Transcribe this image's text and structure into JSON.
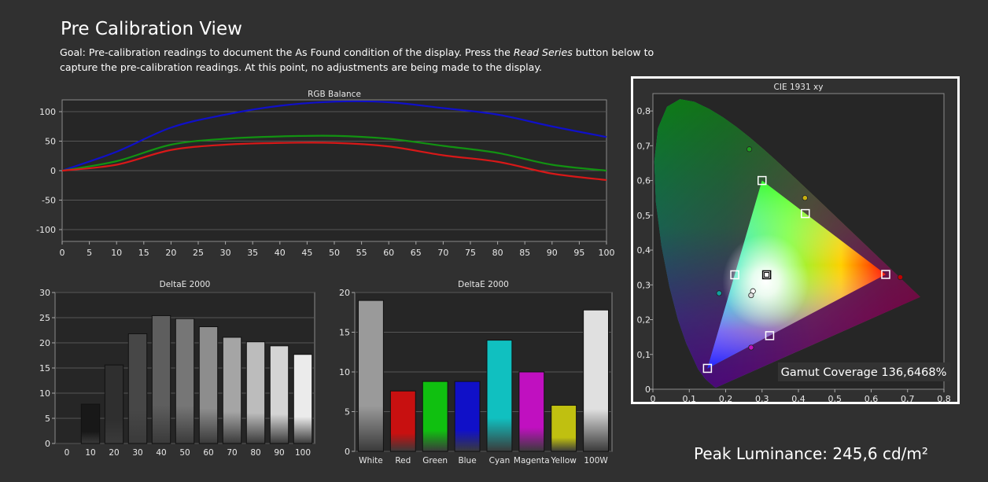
{
  "page": {
    "title": "Pre Calibration View",
    "goal_prefix": "Goal: Pre-calibration readings to document the As Found condition of the display. Press the ",
    "goal_button": "Read Series",
    "goal_suffix": " button below to capture the pre-calibration readings. At this point, no adjustments are being made to the display.",
    "peak_luminance": "Peak Luminance: 245,6 cd/m²"
  },
  "chart_data": [
    {
      "id": "rgb-balance",
      "type": "line",
      "title": "RGB Balance",
      "xlim": [
        0,
        100
      ],
      "ylim": [
        -120,
        120
      ],
      "xticks": [
        "0",
        "5",
        "10",
        "15",
        "20",
        "25",
        "30",
        "35",
        "40",
        "45",
        "50",
        "55",
        "60",
        "65",
        "70",
        "75",
        "80",
        "85",
        "90",
        "95",
        "100"
      ],
      "yticks": [
        "100",
        "50",
        "0",
        "-50",
        "-100"
      ],
      "x": [
        0,
        10,
        20,
        30,
        40,
        50,
        60,
        70,
        80,
        90,
        100
      ],
      "series": [
        {
          "color": "#1010c8",
          "values": [
            0,
            32,
            73,
            95,
            110,
            117,
            116,
            106,
            95,
            75,
            57
          ]
        },
        {
          "color": "#129212",
          "values": [
            0,
            16,
            44,
            54,
            58,
            59,
            54,
            42,
            30,
            10,
            0
          ]
        },
        {
          "color": "#d81818",
          "values": [
            0,
            10,
            35,
            44,
            47,
            47,
            41,
            26,
            15,
            -5,
            -16
          ]
        }
      ],
      "grid": true
    },
    {
      "id": "deltae-greyscale",
      "type": "bar",
      "title": "DeltaE 2000",
      "categories": [
        "0",
        "10",
        "20",
        "30",
        "40",
        "50",
        "60",
        "70",
        "80",
        "90",
        "100"
      ],
      "values": [
        0,
        7.8,
        15.6,
        21.8,
        25.4,
        24.8,
        23.2,
        21.1,
        20.2,
        19.4,
        17.7
      ],
      "ylim": [
        0,
        30
      ],
      "yticks": [
        "0",
        "5",
        "10",
        "15",
        "20",
        "25",
        "30"
      ],
      "grid": true
    },
    {
      "id": "deltae-colors",
      "type": "bar",
      "title": "DeltaE 2000",
      "categories": [
        "White",
        "Red",
        "Green",
        "Blue",
        "Cyan",
        "Magenta",
        "Yellow",
        "100W"
      ],
      "values": [
        19.0,
        7.6,
        8.8,
        8.8,
        14.0,
        10.0,
        5.8,
        17.8
      ],
      "colors": [
        "#9a9a9a",
        "#c81010",
        "#10c010",
        "#1010c8",
        "#10c0c0",
        "#c010c0",
        "#c0c010",
        "#e0e0e0"
      ],
      "ylim": [
        0,
        20
      ],
      "yticks": [
        "0",
        "5",
        "10",
        "15",
        "20"
      ],
      "grid": true
    },
    {
      "id": "cie-1931",
      "type": "scatter",
      "title": "CIE 1931 xy",
      "xlim": [
        0,
        0.8
      ],
      "ylim": [
        0,
        0.85
      ],
      "xticks": [
        "0",
        "0,1",
        "0,2",
        "0,3",
        "0,4",
        "0,5",
        "0,6",
        "0,7",
        "0,8"
      ],
      "yticks": [
        "0",
        "0,1",
        "0,2",
        "0,3",
        "0,4",
        "0,5",
        "0,6",
        "0,7",
        "0,8"
      ],
      "targets": [
        [
          0.64,
          0.33
        ],
        [
          0.3,
          0.6
        ],
        [
          0.15,
          0.06
        ],
        [
          0.3127,
          0.329
        ],
        [
          0.225,
          0.329
        ],
        [
          0.321,
          0.154
        ],
        [
          0.419,
          0.505
        ]
      ],
      "measured": [
        {
          "x": 0.68,
          "y": 0.322,
          "color": "#c00000"
        },
        {
          "x": 0.265,
          "y": 0.69,
          "color": "#20a020"
        },
        {
          "x": 0.418,
          "y": 0.55,
          "color": "#c8b010"
        },
        {
          "x": 0.182,
          "y": 0.276,
          "color": "#10a0a0"
        },
        {
          "x": 0.27,
          "y": 0.12,
          "color": "#c010c0"
        },
        {
          "x": 0.275,
          "y": 0.282,
          "color": "#ffffff"
        },
        {
          "x": 0.27,
          "y": 0.27,
          "color": "#dddddd"
        }
      ],
      "gamut_label": "Gamut Coverage 136,6468%",
      "grid": true
    }
  ]
}
